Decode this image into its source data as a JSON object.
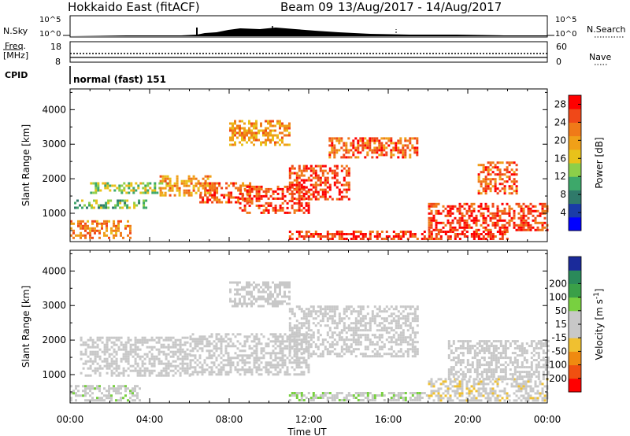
{
  "header": {
    "station": "Hokkaido East (fitACF)",
    "beam": "Beam 09",
    "dates": "13/Aug/2017 - 14/Aug/2017"
  },
  "panels": {
    "nsky_label": "N.Sky",
    "nsearch_label": "N.Search",
    "nsky_ticks": [
      "10^5",
      "10^0"
    ],
    "nsearch_ticks": [
      "10^5",
      "10^0"
    ],
    "freq_label": "Freq.",
    "freq_unit": "[MHz]",
    "freq_ticks": [
      "18",
      "8"
    ],
    "nave_label": "Nave",
    "nave_ticks": [
      "60",
      "0"
    ],
    "cpid_label": "CPID",
    "cpid_value": "normal (fast) 151"
  },
  "colors": {
    "power_scale": [
      "#0000ff",
      "#1a3ca8",
      "#2f7a6a",
      "#3da86a",
      "#8ccf4a",
      "#e8c21a",
      "#f0a018",
      "#f07a18",
      "#f04818",
      "#ff0000"
    ],
    "velocity_scale": [
      "#ff0000",
      "#f05010",
      "#f08a10",
      "#f0c030",
      "#c8c8c8",
      "#c8c8c8",
      "#78d040",
      "#3aa048",
      "#2a8a5a",
      "#1a2a9a"
    ]
  },
  "chart_data": [
    {
      "type": "heatmap",
      "title": "",
      "xlabel": "",
      "ylabel": "Slant Range [km]",
      "xticks": [
        "00:00",
        "04:00",
        "08:00",
        "12:00",
        "16:00",
        "20:00",
        "00:00"
      ],
      "yticks": [
        "1000",
        "2000",
        "3000",
        "4000"
      ],
      "xlim": [
        0,
        24
      ],
      "ylim": [
        180,
        4600
      ],
      "colorbar_label": "Power [dB]",
      "colorbar_ticks": [
        "4",
        "8",
        "12",
        "16",
        "20",
        "24",
        "28"
      ],
      "colorbar_range": [
        0,
        30
      ],
      "echo_bands": [
        {
          "t0": 0.0,
          "t1": 3.0,
          "r0": 300,
          "r1": 800,
          "value": 22
        },
        {
          "t0": 0.2,
          "t1": 4.0,
          "r0": 1150,
          "r1": 1400,
          "value": 12
        },
        {
          "t0": 1.0,
          "t1": 5.0,
          "r0": 1600,
          "r1": 1900,
          "value": 14
        },
        {
          "t0": 4.5,
          "t1": 7.0,
          "r0": 1500,
          "r1": 2100,
          "value": 20
        },
        {
          "t0": 6.5,
          "t1": 9.0,
          "r0": 1300,
          "r1": 1900,
          "value": 24
        },
        {
          "t0": 8.5,
          "t1": 12.0,
          "r0": 1000,
          "r1": 1800,
          "value": 26
        },
        {
          "t0": 11.0,
          "t1": 14.0,
          "r0": 1400,
          "r1": 2400,
          "value": 26
        },
        {
          "t0": 13.0,
          "t1": 17.5,
          "r0": 2600,
          "r1": 3200,
          "value": 24
        },
        {
          "t0": 8.0,
          "t1": 11.0,
          "r0": 3000,
          "r1": 3700,
          "value": 20
        },
        {
          "t0": 11.0,
          "t1": 22.0,
          "r0": 250,
          "r1": 500,
          "value": 26
        },
        {
          "t0": 18.0,
          "t1": 24.0,
          "r0": 500,
          "r1": 1300,
          "value": 26
        },
        {
          "t0": 20.5,
          "t1": 22.5,
          "r0": 1600,
          "r1": 2500,
          "value": 24
        }
      ]
    },
    {
      "type": "heatmap",
      "title": "",
      "xlabel": "Time UT",
      "ylabel": "Slant Range [km]",
      "xticks": [
        "00:00",
        "04:00",
        "08:00",
        "12:00",
        "16:00",
        "20:00",
        "00:00"
      ],
      "yticks": [
        "1000",
        "2000",
        "3000",
        "4000"
      ],
      "xlim": [
        0,
        24
      ],
      "ylim": [
        180,
        4600
      ],
      "colorbar_label": "Velocity [m s^-1]",
      "colorbar_ticks": [
        "-200",
        "-100",
        "-50",
        "-15",
        "15",
        "50",
        "100",
        "200"
      ],
      "colorbar_range": [
        -250,
        250
      ],
      "echo_bands": [
        {
          "t0": 0.0,
          "t1": 3.5,
          "r0": 250,
          "r1": 700,
          "value": 40
        },
        {
          "t0": 0.5,
          "t1": 6.0,
          "r0": 1000,
          "r1": 2100,
          "value": 0
        },
        {
          "t0": 6.0,
          "t1": 12.0,
          "r0": 1000,
          "r1": 2200,
          "value": 0
        },
        {
          "t0": 11.0,
          "t1": 17.5,
          "r0": 1500,
          "r1": 3000,
          "value": 0
        },
        {
          "t0": 8.0,
          "t1": 11.0,
          "r0": 3000,
          "r1": 3700,
          "value": 0
        },
        {
          "t0": 11.0,
          "t1": 18.0,
          "r0": 250,
          "r1": 500,
          "value": 45
        },
        {
          "t0": 18.0,
          "t1": 24.0,
          "r0": 250,
          "r1": 900,
          "value": -40
        },
        {
          "t0": 19.0,
          "t1": 24.0,
          "r0": 900,
          "r1": 2000,
          "value": 0
        }
      ]
    }
  ]
}
